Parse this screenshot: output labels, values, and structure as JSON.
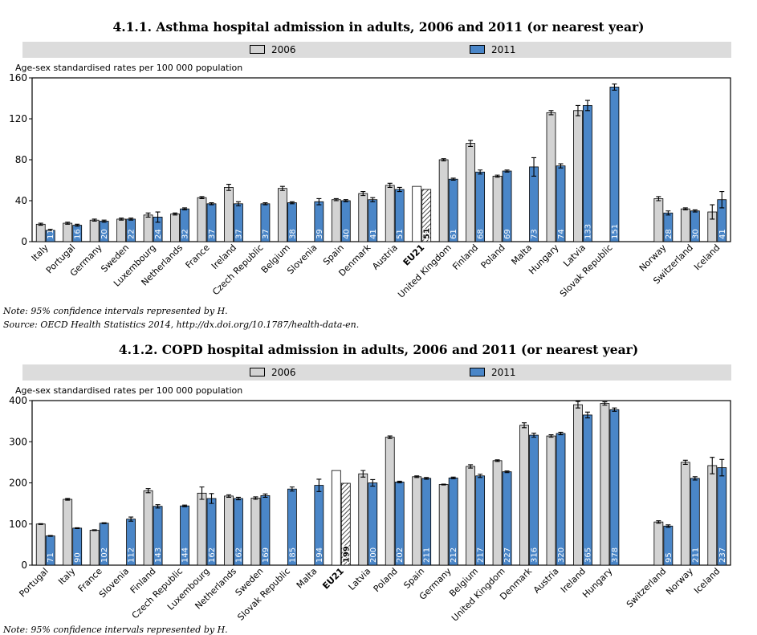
{
  "legend": {
    "label_2006": "2006",
    "label_2011": "2011"
  },
  "colors": {
    "bar_2006": "#d3d3d3",
    "bar_2011": "#4a86c8",
    "eu_2006": "#ffffff"
  },
  "notes": {
    "note": "Note: 95% confidence intervals represented by H.",
    "source": "Source: OECD Health Statistics 2014, http://dx.doi.org/10.1787/health-data-en.",
    "note2": "Note: 95% confidence intervals represented by H."
  },
  "chart_data": [
    {
      "type": "bar",
      "title": "4.1.1. Asthma hospital admission in adults, 2006 and 2011 (or nearest year)",
      "ylabel": "Age-sex standardised rates per 100 000 population",
      "ylim": [
        0,
        160
      ],
      "yticks": [
        0,
        40,
        80,
        120,
        160
      ],
      "grid": false,
      "legend_position": "top",
      "categories": [
        "Italy",
        "Portugal",
        "Germany",
        "Sweden",
        "Luxembourg",
        "Netherlands",
        "France",
        "Ireland",
        "Czech Republic",
        "Belgium",
        "Slovenia",
        "Spain",
        "Denmark",
        "Austria",
        "EU21",
        "United Kingdom",
        "Finland",
        "Poland",
        "Malta",
        "Hungary",
        "Latvia",
        "Slovak Republic",
        "",
        "Norway",
        "Switzerland",
        "Iceland"
      ],
      "series": [
        {
          "name": "2006",
          "values": [
            17,
            18,
            21,
            22,
            26,
            27,
            43,
            53,
            null,
            52,
            null,
            41,
            47,
            55,
            54,
            80,
            96,
            64,
            null,
            126,
            128,
            null,
            null,
            42,
            32,
            29
          ]
        },
        {
          "name": "2011",
          "values": [
            11,
            16,
            20,
            22,
            24,
            32,
            37,
            37,
            37,
            38,
            39,
            40,
            41,
            51,
            51,
            61,
            68,
            69,
            73,
            74,
            133,
            151,
            null,
            28,
            30,
            41
          ]
        }
      ],
      "errors_2006": [
        1,
        1,
        1,
        1,
        2,
        1,
        1,
        3,
        null,
        2,
        null,
        1,
        2,
        2,
        null,
        1,
        3,
        1,
        null,
        2,
        5,
        null,
        null,
        2,
        1,
        7
      ],
      "errors_2011": [
        1,
        1,
        1,
        1,
        5,
        1,
        1,
        2,
        1,
        1,
        3,
        1,
        2,
        2,
        null,
        1,
        2,
        1,
        9,
        2,
        5,
        3,
        null,
        2,
        1,
        8
      ]
    },
    {
      "type": "bar",
      "title": "4.1.2. COPD hospital admission in adults, 2006 and 2011 (or nearest year)",
      "ylabel": "Age-sex standardised rates per 100 000 population",
      "ylim": [
        0,
        400
      ],
      "yticks": [
        0,
        100,
        200,
        300,
        400
      ],
      "grid": false,
      "legend_position": "top",
      "categories": [
        "Portugal",
        "Italy",
        "France",
        "Slovenia",
        "Finland",
        "Czech Republic",
        "Luxembourg",
        "Netherlands",
        "Sweden",
        "Slovak Republic",
        "Malta",
        "EU21",
        "Latvia",
        "Poland",
        "Spain",
        "Germany",
        "Belgium",
        "United Kingdom",
        "Denmark",
        "Austria",
        "Ireland",
        "Hungary",
        "",
        "Switzerland",
        "Norway",
        "Iceland"
      ],
      "series": [
        {
          "name": "2006",
          "values": [
            100,
            160,
            85,
            null,
            181,
            null,
            175,
            168,
            163,
            null,
            null,
            230,
            222,
            311,
            215,
            196,
            240,
            254,
            340,
            314,
            390,
            393,
            null,
            105,
            250,
            242
          ]
        },
        {
          "name": "2011",
          "values": [
            71,
            90,
            102,
            112,
            143,
            144,
            162,
            162,
            169,
            185,
            194,
            199,
            200,
            202,
            211,
            212,
            217,
            227,
            316,
            320,
            365,
            378,
            null,
            95,
            211,
            237
          ]
        }
      ],
      "errors_2006": [
        1,
        2,
        1,
        null,
        5,
        null,
        15,
        3,
        3,
        null,
        null,
        null,
        8,
        3,
        2,
        1,
        4,
        2,
        6,
        3,
        8,
        4,
        null,
        3,
        5,
        20
      ],
      "errors_2011": [
        1,
        1,
        1,
        5,
        4,
        2,
        12,
        3,
        4,
        5,
        15,
        null,
        8,
        2,
        2,
        2,
        4,
        2,
        5,
        3,
        7,
        4,
        null,
        3,
        4,
        20
      ]
    }
  ]
}
